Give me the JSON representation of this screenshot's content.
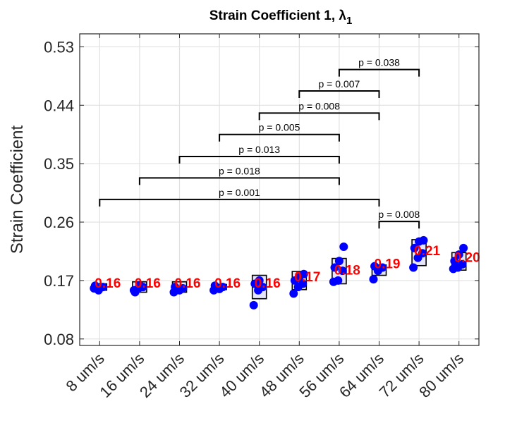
{
  "chart_data": {
    "type": "box-scatter",
    "title": "Strain Coefficient 1, λ",
    "title_subscript": "1",
    "ylabel": "Strain Coefficient",
    "xlabel": "",
    "ylim": [
      0.07,
      0.55
    ],
    "yticks": [
      "0.08",
      "0.17",
      "0.26",
      "0.35",
      "0.44",
      "0.53"
    ],
    "grid": true,
    "categories": [
      "8 um/s",
      "16 um/s",
      "24 um/s",
      "32 um/s",
      "40 um/s",
      "48 um/s",
      "56 um/s",
      "64 um/s",
      "72 um/s",
      "80 um/s"
    ],
    "means": [
      0.16,
      0.16,
      0.16,
      0.16,
      0.16,
      0.17,
      0.18,
      0.19,
      0.21,
      0.2
    ],
    "mean_labels": [
      "0.16",
      "0.16",
      "0.16",
      "0.16",
      "0.16",
      "0.17",
      "0.18",
      "0.19",
      "0.21",
      "0.20"
    ],
    "boxes": [
      {
        "low": 0.155,
        "high": 0.165
      },
      {
        "low": 0.152,
        "high": 0.168
      },
      {
        "low": 0.152,
        "high": 0.168
      },
      {
        "low": 0.156,
        "high": 0.164
      },
      {
        "low": 0.142,
        "high": 0.178
      },
      {
        "low": 0.156,
        "high": 0.184
      },
      {
        "low": 0.165,
        "high": 0.204
      },
      {
        "low": 0.178,
        "high": 0.194
      },
      {
        "low": 0.193,
        "high": 0.233
      },
      {
        "low": 0.186,
        "high": 0.213
      }
    ],
    "points": [
      [
        0.158,
        0.155,
        0.16,
        0.162
      ],
      [
        0.155,
        0.158,
        0.16,
        0.152,
        0.163
      ],
      [
        0.152,
        0.156,
        0.158,
        0.16,
        0.155
      ],
      [
        0.155,
        0.158,
        0.16,
        0.162,
        0.157
      ],
      [
        0.132,
        0.155,
        0.16,
        0.165,
        0.17
      ],
      [
        0.15,
        0.16,
        0.165,
        0.17,
        0.175,
        0.18
      ],
      [
        0.168,
        0.17,
        0.185,
        0.19,
        0.2,
        0.222
      ],
      [
        0.172,
        0.185,
        0.19,
        0.192
      ],
      [
        0.19,
        0.205,
        0.212,
        0.22,
        0.23,
        0.232
      ],
      [
        0.188,
        0.19,
        0.195,
        0.2,
        0.21,
        0.22
      ]
    ],
    "comparisons": [
      {
        "from": 0,
        "to": 7,
        "label": "p = 0.001"
      },
      {
        "from": 1,
        "to": 6,
        "label": "p = 0.018"
      },
      {
        "from": 2,
        "to": 6,
        "label": "p = 0.013"
      },
      {
        "from": 3,
        "to": 6,
        "label": "p = 0.005"
      },
      {
        "from": 4,
        "to": 7,
        "label": "p = 0.008"
      },
      {
        "from": 5,
        "to": 7,
        "label": "p = 0.007"
      },
      {
        "from": 6,
        "to": 8,
        "label": "p = 0.038"
      },
      {
        "from": 7,
        "to": 8,
        "label": "p = 0.008"
      }
    ],
    "colors": {
      "points": "#0000ff",
      "mean_labels": "#ff0000",
      "box_fill": "#e6e6fa",
      "box_edge": "#000000",
      "grid": "#e0e0e0"
    }
  }
}
